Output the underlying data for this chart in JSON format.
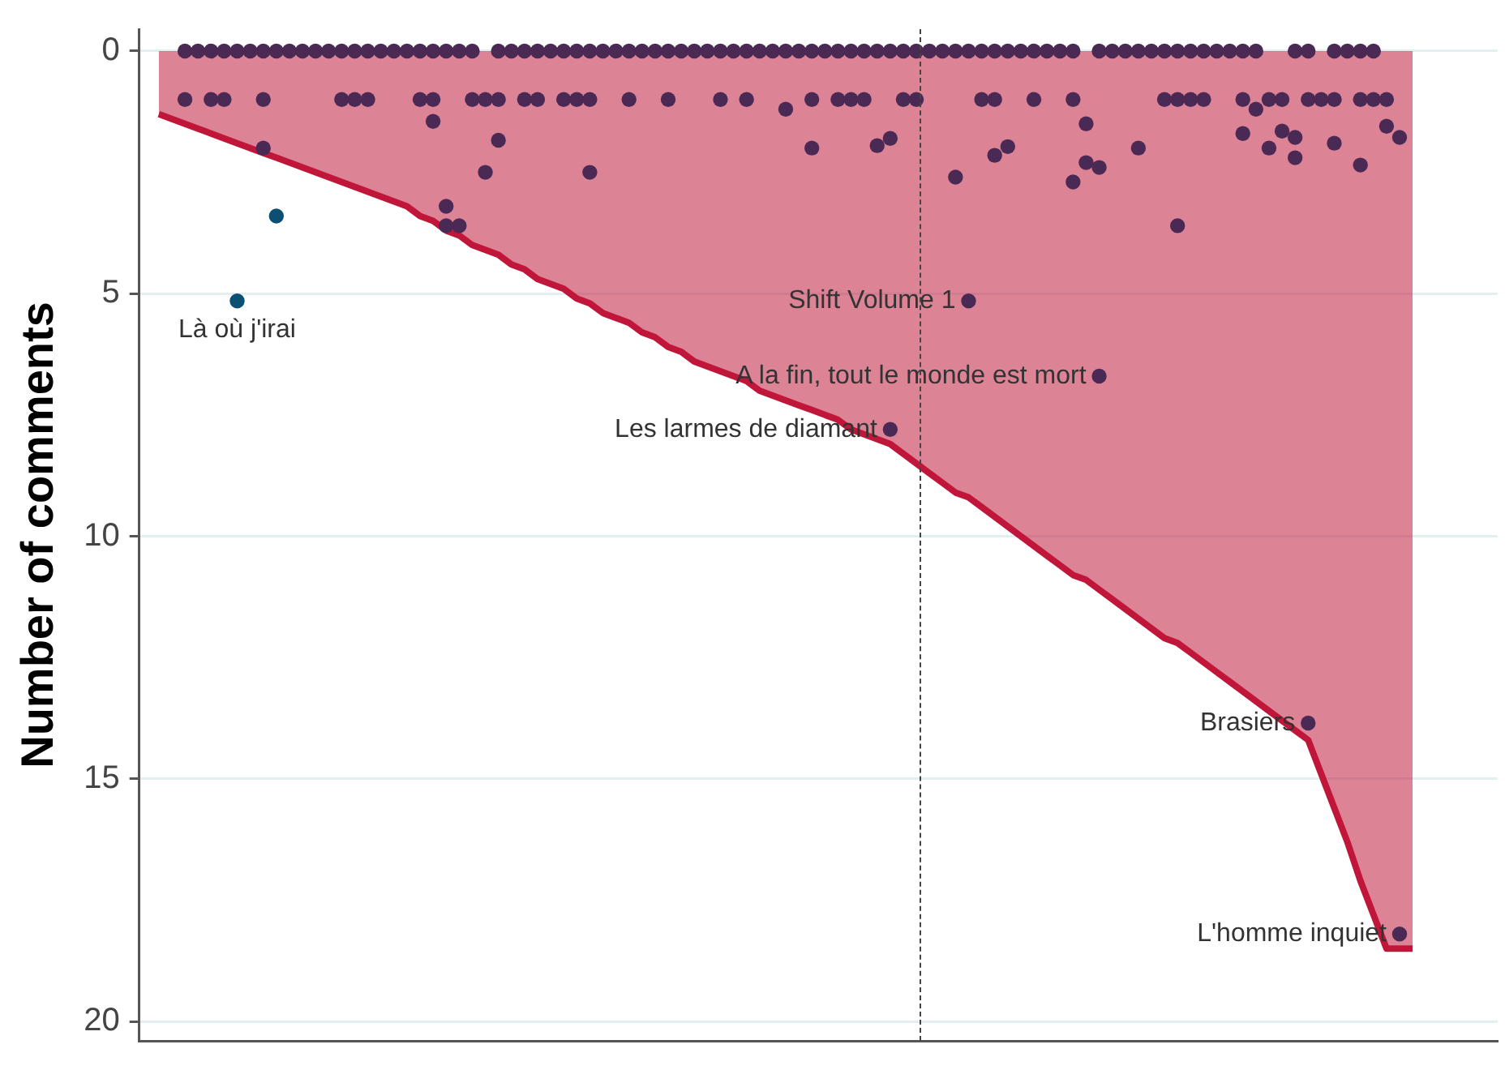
{
  "chart_data": {
    "type": "scatter",
    "ylabel": "Number of comments",
    "ylim": [
      20.4,
      -0.45
    ],
    "yticks": [
      0,
      5,
      10,
      15,
      20
    ],
    "tick_labels": "y",
    "grid": "y",
    "legend": false,
    "marker": "circle",
    "categories": [
      null,
      null,
      null,
      null,
      null,
      null,
      null,
      null,
      null,
      null,
      null,
      null,
      null,
      null,
      null,
      null,
      null,
      null,
      null,
      null,
      null,
      null,
      null,
      null,
      null,
      null,
      null,
      null,
      null,
      null,
      null,
      null,
      null,
      null,
      null,
      null,
      null,
      null,
      null,
      null,
      null,
      null,
      null,
      null,
      null,
      null,
      null,
      null,
      null,
      null,
      null,
      null,
      null,
      null,
      null,
      null,
      null,
      null,
      null,
      null,
      null,
      null,
      null,
      null,
      null,
      null,
      null,
      null,
      null,
      null,
      null,
      null,
      null,
      null,
      null,
      null,
      null,
      null,
      null,
      null,
      null,
      null,
      null,
      null,
      null,
      null,
      null,
      null,
      null,
      null,
      null,
      null,
      null,
      null,
      null,
      null,
      null,
      null,
      null,
      null,
      null,
      null,
      null,
      null
    ],
    "series": [
      {
        "type": "area",
        "marker": "none",
        "color": "#c0163a",
        "values": [
          null,
          1.3,
          1.4,
          1.5,
          1.6,
          1.7,
          1.8,
          1.9,
          2.0,
          2.1,
          2.2,
          2.3,
          2.4,
          2.5,
          2.6,
          2.7,
          2.8,
          2.9,
          3.0,
          3.1,
          3.2,
          3.4,
          3.5,
          3.7,
          3.8,
          4.0,
          4.1,
          4.2,
          4.4,
          4.5,
          4.7,
          4.8,
          4.9,
          5.1,
          5.2,
          5.4,
          5.5,
          5.6,
          5.8,
          5.9,
          6.1,
          6.2,
          6.4,
          6.5,
          6.6,
          6.7,
          6.8,
          7.0,
          7.1,
          7.2,
          7.3,
          7.4,
          7.5,
          7.6,
          7.8,
          7.9,
          8.0,
          8.1,
          8.3,
          8.5,
          8.7,
          8.9,
          9.1,
          9.2,
          9.4,
          9.6,
          9.8,
          10.0,
          10.2,
          10.4,
          10.6,
          10.8,
          10.9,
          11.1,
          11.3,
          11.5,
          11.7,
          11.9,
          12.1,
          12.2,
          12.4,
          12.6,
          12.8,
          13.0,
          13.2,
          13.4,
          13.6,
          13.8,
          14.0,
          14.2,
          14.9,
          15.6,
          16.3,
          17.1,
          17.8,
          18.5,
          18.5,
          18.5,
          null,
          null,
          null,
          null,
          null,
          null
        ]
      },
      {
        "color": "#4a2a55",
        "values": [
          null,
          null,
          null,
          0,
          0,
          0,
          0,
          0,
          0,
          0,
          0,
          0,
          0,
          0,
          0,
          0,
          0,
          0,
          0,
          0,
          0,
          0,
          0,
          0,
          0,
          0,
          null,
          0,
          0,
          0,
          0,
          0,
          0,
          0,
          0,
          0,
          0,
          0,
          0,
          0,
          0,
          0,
          0,
          0,
          0,
          0,
          0,
          0,
          0,
          0,
          0,
          0,
          0,
          0,
          0,
          0,
          0,
          0,
          0,
          0,
          0,
          0,
          0,
          0,
          0,
          0,
          0,
          0,
          0,
          0,
          0,
          0,
          null,
          0,
          0,
          0,
          0,
          0,
          0,
          0,
          0,
          0,
          0,
          0,
          0,
          0,
          null,
          null,
          0,
          0,
          null,
          0,
          0,
          0,
          0,
          null,
          null,
          null,
          null,
          null,
          null,
          null,
          null,
          null
        ]
      },
      {
        "color": "#4a2a55",
        "values": [
          null,
          null,
          null,
          1,
          null,
          1,
          1,
          null,
          null,
          1,
          null,
          null,
          null,
          null,
          null,
          1,
          1,
          1,
          null,
          null,
          null,
          1,
          1,
          null,
          null,
          1,
          1,
          1,
          null,
          1,
          1,
          null,
          1,
          1,
          1,
          null,
          null,
          1,
          null,
          null,
          1,
          null,
          null,
          null,
          1,
          null,
          1,
          null,
          null,
          null,
          null,
          1,
          null,
          1,
          1,
          1,
          null,
          null,
          1,
          1,
          null,
          null,
          null,
          null,
          1,
          1,
          null,
          null,
          1,
          null,
          null,
          1,
          null,
          null,
          null,
          null,
          null,
          null,
          1,
          1,
          1,
          1,
          null,
          null,
          1,
          null,
          1,
          1,
          null,
          1,
          1,
          1,
          null,
          1,
          1,
          1,
          null,
          null,
          null,
          null,
          null,
          null,
          null,
          null
        ]
      },
      {
        "color": "#4a2a55",
        "values": [
          null,
          null,
          null,
          null,
          null,
          null,
          null,
          null,
          null,
          2,
          null,
          null,
          null,
          null,
          null,
          null,
          null,
          null,
          null,
          null,
          null,
          null,
          1.45,
          3.2,
          3.6,
          null,
          2.5,
          1.84,
          null,
          null,
          null,
          null,
          null,
          null,
          2.5,
          null,
          null,
          null,
          null,
          null,
          null,
          null,
          null,
          null,
          null,
          null,
          null,
          null,
          null,
          1.2,
          null,
          2,
          null,
          null,
          null,
          null,
          1.95,
          1.8,
          null,
          null,
          null,
          null,
          2.6,
          null,
          null,
          2.15,
          1.97,
          null,
          null,
          null,
          null,
          2.7,
          1.5,
          2.4,
          null,
          null,
          2,
          null,
          null,
          3.6,
          null,
          null,
          null,
          null,
          1.7,
          1.2,
          2,
          1.65,
          1.78,
          null,
          null,
          1.9,
          null,
          2.35,
          null,
          1.55,
          1.78,
          null,
          null,
          null,
          null,
          null,
          null,
          null
        ]
      },
      {
        "color": "#4a2a55",
        "values": [
          null,
          null,
          null,
          null,
          null,
          null,
          null,
          null,
          null,
          null,
          null,
          null,
          null,
          null,
          null,
          null,
          null,
          null,
          null,
          null,
          null,
          null,
          null,
          3.6,
          null,
          null,
          null,
          null,
          null,
          null,
          null,
          null,
          null,
          null,
          null,
          null,
          null,
          null,
          null,
          null,
          null,
          null,
          null,
          null,
          null,
          null,
          null,
          null,
          null,
          null,
          null,
          null,
          null,
          null,
          null,
          null,
          null,
          null,
          null,
          null,
          null,
          null,
          null,
          null,
          null,
          null,
          null,
          null,
          null,
          null,
          null,
          null,
          2.3,
          null,
          null,
          null,
          null,
          null,
          null,
          null,
          null,
          null,
          null,
          null,
          null,
          null,
          null,
          null,
          2.2,
          null,
          null,
          null,
          null,
          null,
          null,
          null,
          null,
          null,
          null,
          null,
          null,
          null,
          null,
          null
        ]
      },
      {
        "color": "#4a2a55",
        "values": [
          null,
          null,
          null,
          null,
          null,
          null,
          null,
          null,
          null,
          null,
          null,
          null,
          null,
          null,
          null,
          null,
          null,
          null,
          null,
          null,
          null,
          null,
          null,
          null,
          null,
          null,
          null,
          null,
          null,
          null,
          null,
          null,
          null,
          null,
          null,
          null,
          null,
          null,
          null,
          null,
          null,
          null,
          null,
          null,
          null,
          null,
          null,
          null,
          null,
          null,
          null,
          null,
          null,
          null,
          null,
          null,
          null,
          7.8,
          null,
          null,
          null,
          null,
          null,
          5.15,
          null,
          null,
          null,
          null,
          null,
          null,
          null,
          null,
          null,
          6.7,
          null,
          null,
          null,
          null,
          null,
          null,
          null,
          null,
          null,
          null,
          null,
          null,
          null,
          null,
          null,
          13.85,
          null,
          null,
          null,
          null,
          null,
          null,
          18.2,
          null,
          null,
          null,
          null,
          null,
          null,
          null
        ],
        "value_labels": [
          null,
          null,
          null,
          null,
          null,
          null,
          null,
          null,
          null,
          null,
          null,
          null,
          null,
          null,
          null,
          null,
          null,
          null,
          null,
          null,
          null,
          null,
          null,
          null,
          null,
          null,
          null,
          null,
          null,
          null,
          null,
          null,
          null,
          null,
          null,
          null,
          null,
          null,
          null,
          null,
          null,
          null,
          null,
          null,
          null,
          null,
          null,
          null,
          null,
          null,
          null,
          null,
          null,
          null,
          null,
          null,
          null,
          "Les larmes de diamant",
          null,
          null,
          null,
          null,
          null,
          "Shift Volume 1",
          null,
          null,
          null,
          null,
          null,
          null,
          null,
          null,
          null,
          "A la fin, tout le monde est mort",
          null,
          null,
          null,
          null,
          null,
          null,
          null,
          null,
          null,
          null,
          null,
          null,
          null,
          null,
          null,
          "Brasiers",
          null,
          null,
          null,
          null,
          null,
          null,
          "L'homme inquiet",
          null,
          null,
          null,
          null,
          null,
          null,
          null
        ]
      },
      {
        "color": "#0b4f72",
        "values": [
          null,
          null,
          null,
          null,
          null,
          null,
          null,
          5.15,
          null,
          null,
          3.4,
          null,
          null,
          null,
          null,
          null,
          null,
          null,
          null,
          null,
          null,
          null,
          null,
          null,
          null,
          null,
          null,
          null,
          null,
          null,
          null,
          null,
          null,
          null,
          null,
          null,
          null,
          null,
          null,
          null,
          null,
          null,
          null,
          null,
          null,
          null,
          null,
          null,
          null,
          null,
          null,
          null,
          null,
          null,
          null,
          null,
          null,
          null,
          null,
          null,
          null,
          null,
          null,
          null,
          null,
          null,
          null,
          null,
          null,
          null,
          null,
          null,
          null,
          null,
          null,
          null,
          null,
          null,
          null,
          null,
          null,
          null,
          null,
          null,
          null,
          null,
          null,
          null,
          null,
          null,
          null,
          null,
          null,
          null,
          null,
          null,
          null,
          null,
          null,
          null,
          null,
          null,
          null,
          null
        ],
        "value_labels": [
          null,
          null,
          null,
          null,
          null,
          null,
          null,
          "Là où j'irai",
          null,
          null,
          null,
          null,
          null,
          null,
          null,
          null,
          null,
          null,
          null,
          null,
          null,
          null,
          null,
          null,
          null,
          null,
          null,
          null,
          null,
          null,
          null,
          null,
          null,
          null,
          null,
          null,
          null,
          null,
          null,
          null,
          null,
          null,
          null,
          null,
          null,
          null,
          null,
          null,
          null,
          null,
          null,
          null,
          null,
          null,
          null,
          null,
          null,
          null,
          null,
          null,
          null,
          null,
          null,
          null,
          null,
          null,
          null,
          null,
          null,
          null,
          null,
          null,
          null,
          null,
          null,
          null,
          null,
          null,
          null,
          null,
          null,
          null,
          null,
          null,
          null,
          null,
          null,
          null,
          null,
          null,
          null,
          null,
          null,
          null,
          null,
          null,
          null,
          null,
          null,
          null,
          null,
          null,
          null,
          null
        ]
      }
    ]
  }
}
